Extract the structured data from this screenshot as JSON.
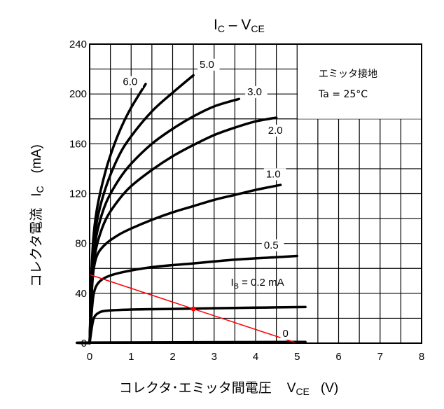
{
  "chart_data": {
    "type": "line",
    "title": "IC – VCE",
    "title_parts": {
      "main": "I",
      "main_sub": "C",
      "dash": " – V",
      "dash_sub": "CE"
    },
    "xlabel": {
      "text": "コレクタ･エミッタ間電圧",
      "sym": "V",
      "sym_sub": "CE",
      "unit": "(V)"
    },
    "ylabel": {
      "text": "コレクタ電流",
      "sym": "I",
      "sym_sub": "C",
      "unit": "(mA)"
    },
    "xlim": [
      0,
      8
    ],
    "ylim": [
      0,
      240
    ],
    "x_ticks": [
      "0",
      "1",
      "2",
      "3",
      "4",
      "5",
      "6",
      "7",
      "8"
    ],
    "y_ticks": [
      "0",
      "40",
      "80",
      "120",
      "160",
      "200",
      "240"
    ],
    "grid": true,
    "annotation_box": {
      "line1": "エミッタ接地",
      "line2": "Ta = 25°C"
    },
    "series": [
      {
        "name": "0",
        "label": "0",
        "points": [
          [
            0,
            0
          ],
          [
            0.1,
            0.5
          ],
          [
            5.2,
            1
          ]
        ]
      },
      {
        "name": "0.2",
        "label": "I_B = 0.2 mA",
        "label_parts": {
          "pre": "I",
          "sub": "B",
          "post": " = 0.2 mA"
        },
        "points": [
          [
            0,
            0
          ],
          [
            0.05,
            12
          ],
          [
            0.1,
            20
          ],
          [
            0.2,
            24
          ],
          [
            0.4,
            26
          ],
          [
            1,
            27
          ],
          [
            2,
            27.5
          ],
          [
            3,
            28
          ],
          [
            4,
            28.5
          ],
          [
            5.2,
            29
          ]
        ]
      },
      {
        "name": "0.5",
        "label": "0.5",
        "points": [
          [
            0,
            0
          ],
          [
            0.05,
            25
          ],
          [
            0.1,
            40
          ],
          [
            0.2,
            48
          ],
          [
            0.4,
            53
          ],
          [
            0.8,
            57
          ],
          [
            1.5,
            61
          ],
          [
            2.5,
            64
          ],
          [
            3.5,
            67
          ],
          [
            4.5,
            69
          ],
          [
            5.0,
            70
          ]
        ]
      },
      {
        "name": "1.0",
        "label": "1.0",
        "points": [
          [
            0,
            0
          ],
          [
            0.05,
            40
          ],
          [
            0.1,
            60
          ],
          [
            0.2,
            72
          ],
          [
            0.4,
            80
          ],
          [
            0.7,
            87
          ],
          [
            1.0,
            92
          ],
          [
            1.5,
            99
          ],
          [
            2.0,
            105
          ],
          [
            2.5,
            110
          ],
          [
            3.0,
            115
          ],
          [
            3.5,
            119
          ],
          [
            4.0,
            123
          ],
          [
            4.6,
            127
          ]
        ]
      },
      {
        "name": "2.0",
        "label": "2.0",
        "points": [
          [
            0,
            0
          ],
          [
            0.05,
            45
          ],
          [
            0.1,
            65
          ],
          [
            0.2,
            82
          ],
          [
            0.4,
            100
          ],
          [
            0.7,
            115
          ],
          [
            1.0,
            126
          ],
          [
            1.5,
            139
          ],
          [
            2.0,
            150
          ],
          [
            2.5,
            159
          ],
          [
            3.0,
            167
          ],
          [
            3.5,
            173
          ],
          [
            4.0,
            178
          ],
          [
            4.5,
            181
          ]
        ]
      },
      {
        "name": "3.0",
        "label": "3.0",
        "points": [
          [
            0,
            0
          ],
          [
            0.05,
            50
          ],
          [
            0.1,
            72
          ],
          [
            0.2,
            92
          ],
          [
            0.4,
            113
          ],
          [
            0.7,
            131
          ],
          [
            1.0,
            144
          ],
          [
            1.5,
            160
          ],
          [
            2.0,
            172
          ],
          [
            2.5,
            182
          ],
          [
            3.0,
            190
          ],
          [
            3.6,
            196
          ]
        ]
      },
      {
        "name": "5.0",
        "label": "5.0",
        "points": [
          [
            0,
            0
          ],
          [
            0.05,
            55
          ],
          [
            0.1,
            80
          ],
          [
            0.2,
            102
          ],
          [
            0.4,
            126
          ],
          [
            0.7,
            150
          ],
          [
            1.0,
            166
          ],
          [
            1.5,
            186
          ],
          [
            2.0,
            201
          ],
          [
            2.5,
            215
          ]
        ]
      },
      {
        "name": "6.0",
        "label": "6.0",
        "points": [
          [
            0,
            0
          ],
          [
            0.05,
            60
          ],
          [
            0.1,
            88
          ],
          [
            0.2,
            112
          ],
          [
            0.4,
            140
          ],
          [
            0.6,
            160
          ],
          [
            0.8,
            176
          ],
          [
            1.0,
            189
          ],
          [
            1.2,
            200
          ],
          [
            1.35,
            208
          ]
        ]
      }
    ],
    "load_line": {
      "color": "#ff0000",
      "points": [
        [
          0,
          55
        ],
        [
          5.0,
          0
        ]
      ],
      "operating_point": [
        2.5,
        27.5
      ]
    },
    "colors": {
      "curves": "#000000",
      "load_line": "#ff0000",
      "grid": "#000000"
    }
  }
}
